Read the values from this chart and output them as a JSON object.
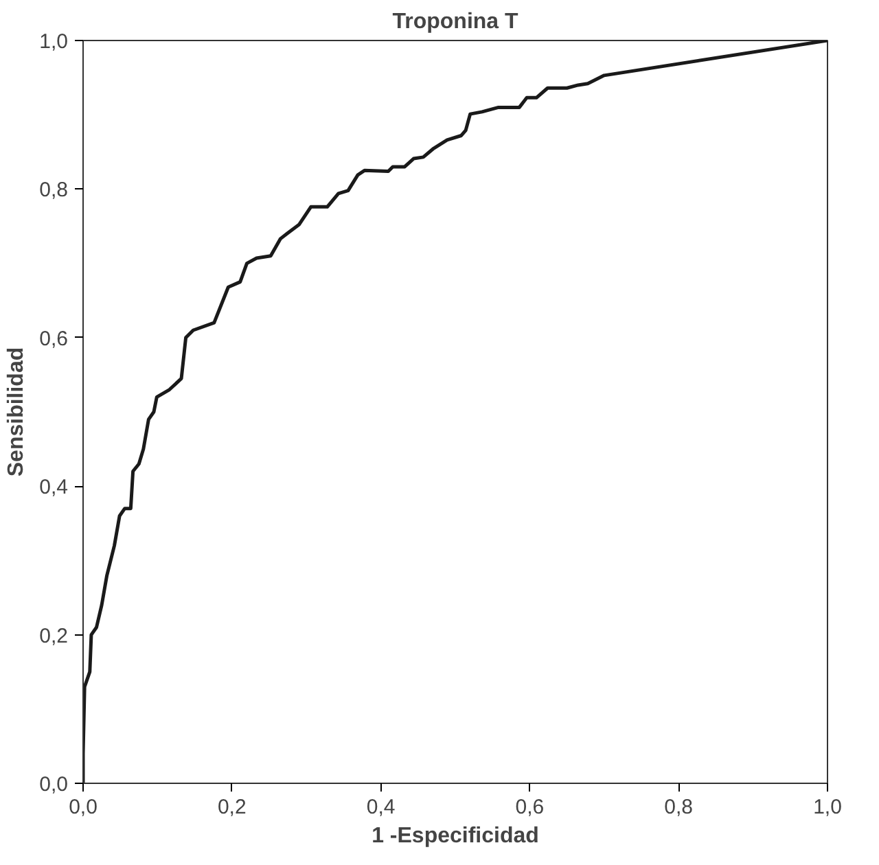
{
  "chart_data": {
    "type": "line",
    "title": "Troponina T",
    "xlabel": "1 -Especificidad",
    "ylabel": "Sensibilidad",
    "xlim": [
      0,
      1
    ],
    "ylim": [
      0,
      1
    ],
    "xticks": [
      {
        "value": 0,
        "label": "0,0"
      },
      {
        "value": 0.2,
        "label": "0,2"
      },
      {
        "value": 0.4,
        "label": "0,4"
      },
      {
        "value": 0.6,
        "label": "0,6"
      },
      {
        "value": 0.8,
        "label": "0,8"
      },
      {
        "value": 1,
        "label": "1,0"
      }
    ],
    "yticks": [
      {
        "value": 0,
        "label": "0,0"
      },
      {
        "value": 0.2,
        "label": "0,2"
      },
      {
        "value": 0.4,
        "label": "0,4"
      },
      {
        "value": 0.6,
        "label": "0,6"
      },
      {
        "value": 0.8,
        "label": "0,8"
      },
      {
        "value": 1,
        "label": "1,0"
      }
    ],
    "grid": false,
    "line_style": "solid",
    "series": [
      {
        "color": "#1a1a1a",
        "x": [
          0,
          0,
          0.002,
          0.009,
          0.011,
          0.018,
          0.025,
          0.032,
          0.042,
          0.049,
          0.056,
          0.064,
          0.067,
          0.075,
          0.081,
          0.088,
          0.095,
          0.099,
          0.116,
          0.132,
          0.138,
          0.148,
          0.176,
          0.195,
          0.211,
          0.22,
          0.233,
          0.252,
          0.265,
          0.274,
          0.29,
          0.306,
          0.328,
          0.343,
          0.356,
          0.369,
          0.378,
          0.41,
          0.416,
          0.432,
          0.444,
          0.457,
          0.47,
          0.489,
          0.508,
          0.514,
          0.52,
          0.536,
          0.558,
          0.586,
          0.596,
          0.609,
          0.624,
          0.65,
          0.665,
          0.678,
          0.7,
          1
        ],
        "values": [
          0,
          0.04,
          0.13,
          0.15,
          0.2,
          0.21,
          0.24,
          0.28,
          0.32,
          0.36,
          0.37,
          0.37,
          0.42,
          0.43,
          0.45,
          0.49,
          0.5,
          0.52,
          0.53,
          0.545,
          0.6,
          0.61,
          0.62,
          0.668,
          0.675,
          0.7,
          0.707,
          0.71,
          0.733,
          0.74,
          0.752,
          0.776,
          0.776,
          0.794,
          0.798,
          0.819,
          0.825,
          0.824,
          0.83,
          0.83,
          0.841,
          0.843,
          0.854,
          0.866,
          0.872,
          0.879,
          0.901,
          0.904,
          0.91,
          0.91,
          0.923,
          0.923,
          0.936,
          0.936,
          0.94,
          0.942,
          0.953,
          1
        ]
      }
    ]
  }
}
